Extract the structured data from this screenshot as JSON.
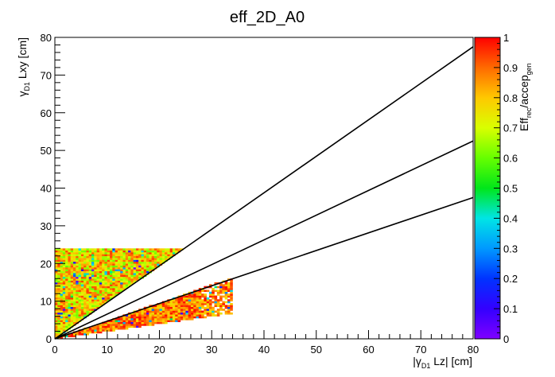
{
  "chart_data": {
    "type": "heatmap",
    "title": "eff_2D_A0",
    "xlabel": {
      "pre": "|γ",
      "sub": "D1",
      "post": " Lz| [cm]"
    },
    "ylabel": {
      "pre": "γ",
      "sub": "D1",
      "post": " Lxy [cm]"
    },
    "zlabel": {
      "base1": "Eff",
      "sub1": "rec",
      "mid": "/accep",
      "sub2": "gen"
    },
    "xlim": [
      0,
      80
    ],
    "ylim": [
      0,
      80
    ],
    "zlim": [
      0,
      1
    ],
    "x_ticks": [
      "0",
      "10",
      "20",
      "30",
      "40",
      "50",
      "60",
      "70",
      "80"
    ],
    "y_ticks": [
      "0",
      "10",
      "20",
      "30",
      "40",
      "50",
      "60",
      "70",
      "80"
    ],
    "z_ticks": [
      "0",
      "0.1",
      "0.2",
      "0.3",
      "0.4",
      "0.5",
      "0.6",
      "0.7",
      "0.8",
      "0.9",
      "1"
    ],
    "colormap": [
      "#7f00ff",
      "#3300ff",
      "#0033ff",
      "#0099ff",
      "#00e5e5",
      "#00e61a",
      "#66ff00",
      "#d9ff00",
      "#ffc800",
      "#ff6a00",
      "#ff0000"
    ],
    "lines": [
      {
        "name": "line-upper",
        "points": [
          [
            0,
            0
          ],
          [
            80,
            77.5
          ]
        ]
      },
      {
        "name": "line-middle",
        "points": [
          [
            0,
            0
          ],
          [
            80,
            52.5
          ]
        ]
      },
      {
        "name": "line-lower",
        "points": [
          [
            0,
            0
          ],
          [
            80,
            37.5
          ]
        ]
      }
    ],
    "regions": [
      {
        "name": "upper-wedge",
        "x_range": [
          0,
          25
        ],
        "y_max": 24,
        "slope_min": 0.97,
        "slope_max": 99,
        "efficiency_range": [
          0.6,
          0.95
        ]
      },
      {
        "name": "lower-wedge",
        "x_range": [
          0,
          34
        ],
        "y_max": 16,
        "slope_min": 0.2,
        "slope_max": 0.48,
        "efficiency_range": [
          0.75,
          1.0
        ]
      }
    ],
    "grid": false,
    "legend": "none"
  }
}
